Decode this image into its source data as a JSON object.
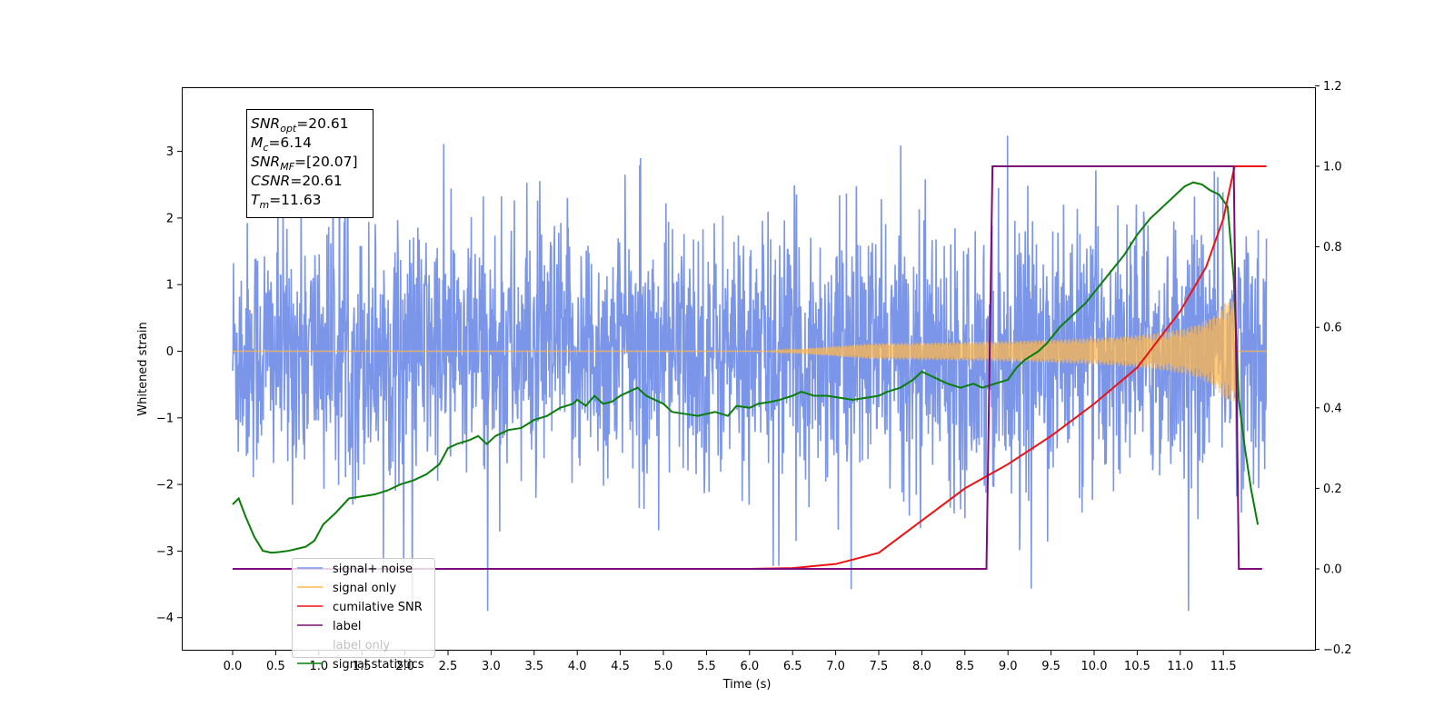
{
  "chart_data": {
    "type": "line",
    "xlabel": "Time (s)",
    "ylabel": "Whitened strain",
    "xlim": [
      -0.6,
      12.6
    ],
    "ylim": [
      -4.5,
      3.95
    ],
    "y2lim": [
      -0.2,
      1.2
    ],
    "grid": false,
    "legend_position": "lower-left",
    "x_ticks": [
      "0.0",
      "0.5",
      "1.0",
      "1.5",
      "2.0",
      "2.5",
      "3.0",
      "3.5",
      "4.0",
      "4.5",
      "5.0",
      "5.5",
      "6.0",
      "6.5",
      "7.0",
      "7.5",
      "8.0",
      "8.5",
      "9.0",
      "9.5",
      "10.0",
      "10.5",
      "11.0",
      "11.5"
    ],
    "y_ticks": [
      "−4",
      "−3",
      "−2",
      "−1",
      "0",
      "1",
      "2",
      "3"
    ],
    "y2_ticks": [
      "−0.2",
      "0.0",
      "0.2",
      "0.4",
      "0.6",
      "0.8",
      "1.0",
      "1.2"
    ],
    "annotation": {
      "lines": [
        {
          "base": "SNR",
          "sub": "opt",
          "rest": "=20.61"
        },
        {
          "base": "M",
          "sub": "c",
          "rest": "=6.14"
        },
        {
          "base": "SNR",
          "sub": "MF",
          "rest": "=[20.07]"
        },
        {
          "base": "CSNR",
          "sub": "",
          "rest": "=20.61"
        },
        {
          "base": "T",
          "sub": "m",
          "rest": "=11.63"
        }
      ]
    },
    "series": [
      {
        "name": "signal+ noise",
        "color": "#7b96e8",
        "axis": "left",
        "style": "noise band, |amplitude| mostly within ±1.8, peaks to about ±3.6",
        "x_range": [
          0.0,
          12.0
        ]
      },
      {
        "name": "signal only",
        "color": "#ffb74d",
        "axis": "left",
        "style": "chirp, amplitude growing from 0 near 6.5 s to about ±0.75 at 11.6 s",
        "x_range": [
          0.0,
          12.0
        ]
      },
      {
        "name": "cumilative SNR",
        "color": "#ee1111",
        "axis": "right",
        "x": [
          0.0,
          6.0,
          6.5,
          7.0,
          7.5,
          8.0,
          8.5,
          9.0,
          9.5,
          10.0,
          10.5,
          11.0,
          11.3,
          11.5,
          11.63,
          12.0
        ],
        "y": [
          0.0,
          0.0,
          0.002,
          0.012,
          0.04,
          0.12,
          0.2,
          0.26,
          0.33,
          0.41,
          0.5,
          0.64,
          0.75,
          0.87,
          1.0,
          1.0
        ]
      },
      {
        "name": "label",
        "color": "#7b0a7b",
        "axis": "right",
        "x": [
          0.0,
          8.75,
          8.82,
          11.62,
          11.68,
          11.95
        ],
        "y": [
          0.0,
          0.0,
          1.0,
          1.0,
          0.0,
          0.0
        ]
      },
      {
        "name": "label only",
        "color": "#000000",
        "axis": "right",
        "hidden": true
      },
      {
        "name": "signal statistics",
        "color": "#0a7d0a",
        "axis": "right",
        "x": [
          0.0,
          0.07,
          0.15,
          0.25,
          0.35,
          0.45,
          0.55,
          0.65,
          0.75,
          0.85,
          0.95,
          1.05,
          1.2,
          1.35,
          1.5,
          1.65,
          1.8,
          1.95,
          2.1,
          2.25,
          2.4,
          2.5,
          2.6,
          2.75,
          2.85,
          2.95,
          3.05,
          3.2,
          3.35,
          3.5,
          3.65,
          3.8,
          3.95,
          4.0,
          4.1,
          4.2,
          4.3,
          4.4,
          4.5,
          4.6,
          4.7,
          4.8,
          4.9,
          5.0,
          5.1,
          5.25,
          5.4,
          5.5,
          5.6,
          5.75,
          5.85,
          6.0,
          6.1,
          6.25,
          6.35,
          6.5,
          6.6,
          6.75,
          6.9,
          7.05,
          7.2,
          7.35,
          7.5,
          7.6,
          7.75,
          7.9,
          8.0,
          8.1,
          8.2,
          8.3,
          8.45,
          8.6,
          8.7,
          8.85,
          9.0,
          9.1,
          9.2,
          9.35,
          9.45,
          9.6,
          9.75,
          9.9,
          10.05,
          10.2,
          10.35,
          10.5,
          10.65,
          10.8,
          10.95,
          11.05,
          11.15,
          11.25,
          11.35,
          11.45,
          11.55,
          11.62,
          11.68,
          11.75,
          11.82,
          11.9
        ],
        "y": [
          0.16,
          0.175,
          0.13,
          0.08,
          0.045,
          0.04,
          0.042,
          0.045,
          0.05,
          0.055,
          0.07,
          0.11,
          0.14,
          0.175,
          0.18,
          0.185,
          0.195,
          0.21,
          0.22,
          0.235,
          0.26,
          0.3,
          0.31,
          0.32,
          0.33,
          0.31,
          0.33,
          0.345,
          0.35,
          0.37,
          0.38,
          0.4,
          0.41,
          0.42,
          0.405,
          0.43,
          0.41,
          0.415,
          0.43,
          0.44,
          0.45,
          0.43,
          0.42,
          0.41,
          0.39,
          0.385,
          0.38,
          0.385,
          0.39,
          0.38,
          0.405,
          0.4,
          0.41,
          0.415,
          0.42,
          0.43,
          0.44,
          0.43,
          0.43,
          0.425,
          0.42,
          0.425,
          0.43,
          0.44,
          0.45,
          0.47,
          0.49,
          0.48,
          0.47,
          0.46,
          0.45,
          0.46,
          0.45,
          0.46,
          0.47,
          0.5,
          0.52,
          0.54,
          0.56,
          0.6,
          0.63,
          0.66,
          0.7,
          0.74,
          0.78,
          0.83,
          0.87,
          0.9,
          0.93,
          0.95,
          0.96,
          0.955,
          0.94,
          0.93,
          0.9,
          0.72,
          0.42,
          0.3,
          0.2,
          0.11
        ]
      }
    ]
  }
}
